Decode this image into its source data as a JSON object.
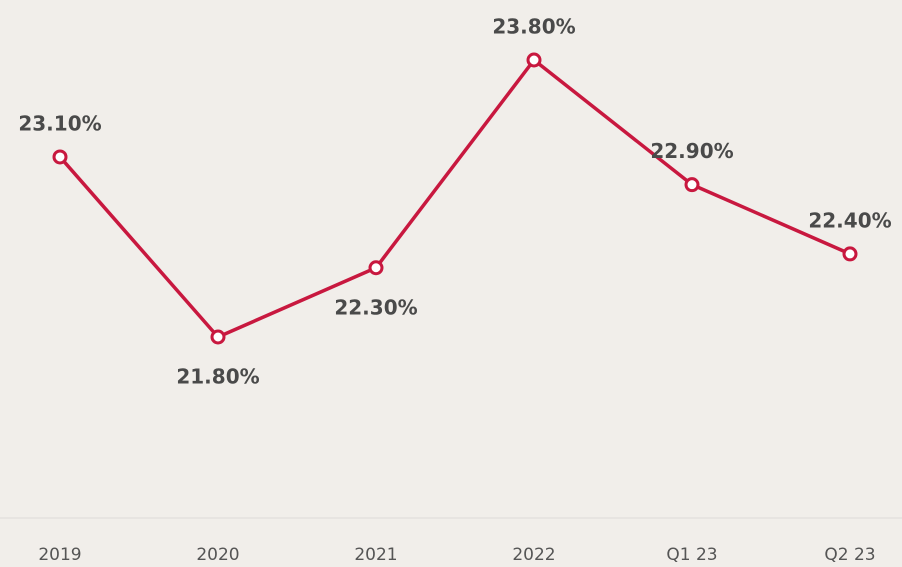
{
  "chart_data": {
    "type": "line",
    "categories": [
      "2019",
      "2020",
      "2021",
      "2022",
      "Q1 23",
      "Q2 23"
    ],
    "series": [
      {
        "color": "#c8183f",
        "values": [
          23.1,
          21.8,
          22.3,
          23.8,
          22.9,
          22.4
        ],
        "value_labels": [
          "23.10%",
          "21.80%",
          "22.30%",
          "23.80%",
          "22.90%",
          "22.40%"
        ]
      }
    ]
  }
}
